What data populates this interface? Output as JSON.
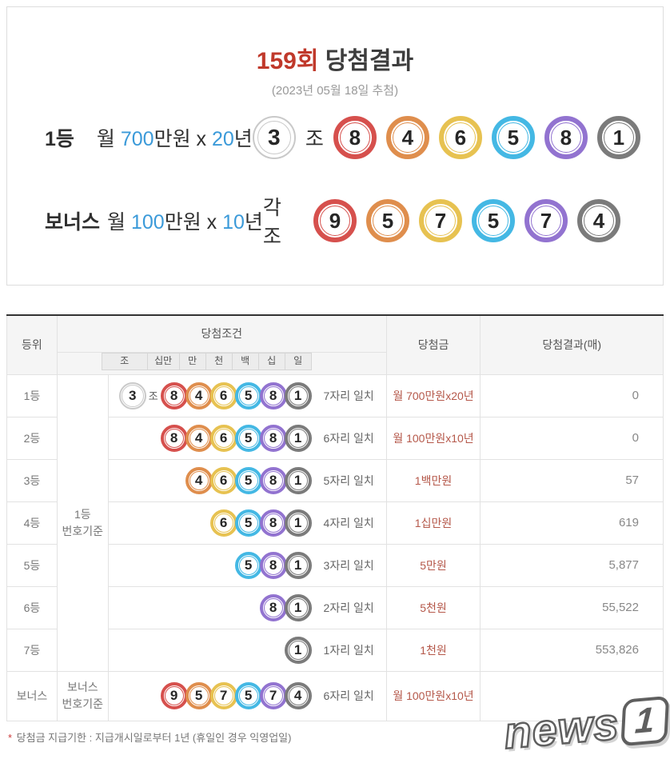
{
  "colors": {
    "red": "#d6504d",
    "orange": "#df8e4d",
    "yellow": "#e7c251",
    "blue": "#44b8e4",
    "purple": "#9273d0",
    "gray": "#7b7b7b",
    "jo": "#c9c9c9"
  },
  "header": {
    "round": "159회",
    "title_rest": " 당첨결과",
    "subtitle": "(2023년 05월 18일 추첨)"
  },
  "first": {
    "rank": "1등",
    "prize": [
      "월 ",
      "700",
      "만원 x ",
      "20",
      "년"
    ],
    "balls": [
      {
        "n": "3",
        "c": "jo"
      },
      {
        "label": "조"
      },
      {
        "n": "8",
        "c": "red"
      },
      {
        "n": "4",
        "c": "orange"
      },
      {
        "n": "6",
        "c": "yellow"
      },
      {
        "n": "5",
        "c": "blue"
      },
      {
        "n": "8",
        "c": "purple"
      },
      {
        "n": "1",
        "c": "gray"
      }
    ]
  },
  "bonus": {
    "rank": "보너스",
    "prize": [
      "월 ",
      "100",
      "만원 x ",
      "10",
      "년"
    ],
    "balls": [
      {
        "label": "각 조"
      },
      {
        "n": "9",
        "c": "red"
      },
      {
        "n": "5",
        "c": "orange"
      },
      {
        "n": "7",
        "c": "yellow"
      },
      {
        "n": "5",
        "c": "blue"
      },
      {
        "n": "7",
        "c": "purple"
      },
      {
        "n": "4",
        "c": "gray"
      }
    ]
  },
  "table": {
    "headers": {
      "rank": "등위",
      "condition": "당첨조건",
      "prize": "당첨금",
      "result": "당첨결과(매)"
    },
    "digit_headers": [
      "조",
      "십만",
      "만",
      "천",
      "백",
      "십",
      "일"
    ],
    "basis_first": [
      "1등",
      "번호기준"
    ],
    "basis_bonus": [
      "보너스",
      "번호기준"
    ],
    "rows": [
      {
        "rank": "1등",
        "balls": [
          {
            "n": "3",
            "c": "jo"
          },
          {
            "label": "조"
          },
          {
            "n": "8",
            "c": "red"
          },
          {
            "n": "4",
            "c": "orange"
          },
          {
            "n": "6",
            "c": "yellow"
          },
          {
            "n": "5",
            "c": "blue"
          },
          {
            "n": "8",
            "c": "purple"
          },
          {
            "n": "1",
            "c": "gray"
          }
        ],
        "match": "7자리 일치",
        "prize": "월 700만원x20년",
        "count": "0"
      },
      {
        "rank": "2등",
        "balls": [
          {
            "n": "8",
            "c": "red"
          },
          {
            "n": "4",
            "c": "orange"
          },
          {
            "n": "6",
            "c": "yellow"
          },
          {
            "n": "5",
            "c": "blue"
          },
          {
            "n": "8",
            "c": "purple"
          },
          {
            "n": "1",
            "c": "gray"
          }
        ],
        "match": "6자리 일치",
        "prize": "월 100만원x10년",
        "count": "0"
      },
      {
        "rank": "3등",
        "balls": [
          {
            "n": "4",
            "c": "orange"
          },
          {
            "n": "6",
            "c": "yellow"
          },
          {
            "n": "5",
            "c": "blue"
          },
          {
            "n": "8",
            "c": "purple"
          },
          {
            "n": "1",
            "c": "gray"
          }
        ],
        "match": "5자리 일치",
        "prize": "1백만원",
        "count": "57"
      },
      {
        "rank": "4등",
        "balls": [
          {
            "n": "6",
            "c": "yellow"
          },
          {
            "n": "5",
            "c": "blue"
          },
          {
            "n": "8",
            "c": "purple"
          },
          {
            "n": "1",
            "c": "gray"
          }
        ],
        "match": "4자리 일치",
        "prize": "1십만원",
        "count": "619"
      },
      {
        "rank": "5등",
        "balls": [
          {
            "n": "5",
            "c": "blue"
          },
          {
            "n": "8",
            "c": "purple"
          },
          {
            "n": "1",
            "c": "gray"
          }
        ],
        "match": "3자리 일치",
        "prize": "5만원",
        "count": "5,877"
      },
      {
        "rank": "6등",
        "balls": [
          {
            "n": "8",
            "c": "purple"
          },
          {
            "n": "1",
            "c": "gray"
          }
        ],
        "match": "2자리 일치",
        "prize": "5천원",
        "count": "55,522"
      },
      {
        "rank": "7등",
        "balls": [
          {
            "n": "1",
            "c": "gray"
          }
        ],
        "match": "1자리 일치",
        "prize": "1천원",
        "count": "553,826"
      },
      {
        "rank": "보너스",
        "balls": [
          {
            "n": "9",
            "c": "red"
          },
          {
            "n": "5",
            "c": "orange"
          },
          {
            "n": "7",
            "c": "yellow"
          },
          {
            "n": "5",
            "c": "blue"
          },
          {
            "n": "7",
            "c": "purple"
          },
          {
            "n": "4",
            "c": "gray"
          }
        ],
        "match": "6자리 일치",
        "prize": "월 100만원x10년",
        "count": ""
      }
    ]
  },
  "footnote": {
    "star": "*",
    "text": " 당첨금 지급기한 : 지급개시일로부터 1년 (휴일인 경우 익영업일)"
  },
  "watermark": {
    "news": "news",
    "one": "1"
  }
}
